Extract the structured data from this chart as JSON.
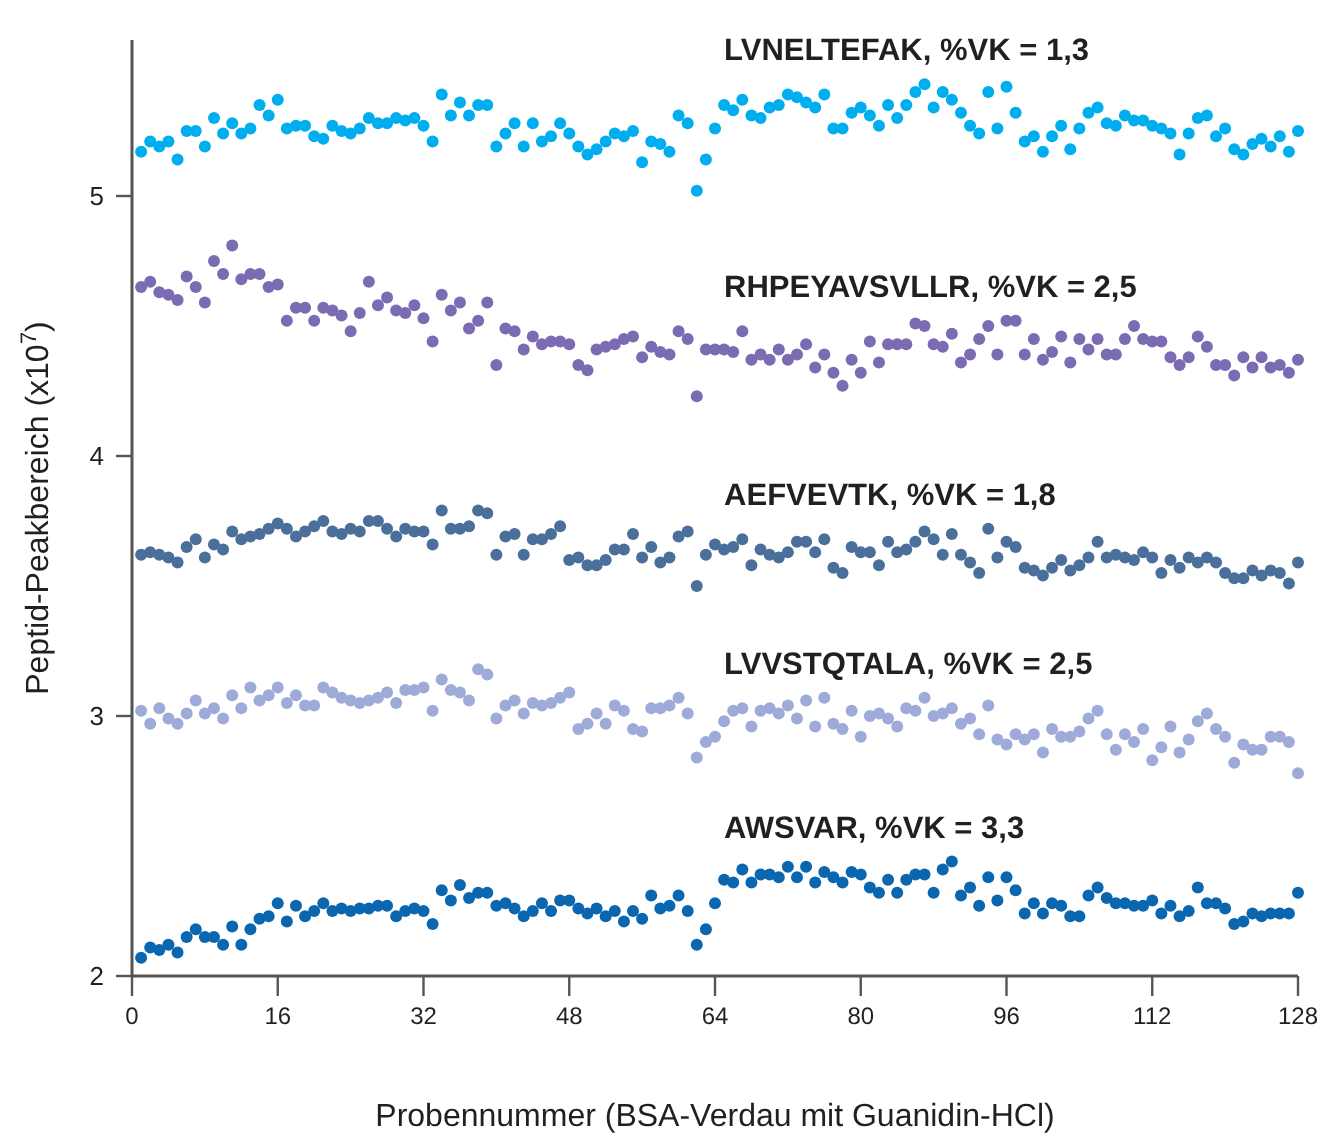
{
  "chart_data": {
    "type": "scatter",
    "xlabel": "Probennummer (BSA-Verdau mit Guanidin-HCl)",
    "ylabel": "Peptid-Peakbereich (x10$^{7}$)",
    "xlim": [
      0,
      128
    ],
    "xticks": [
      0,
      16,
      32,
      48,
      64,
      80,
      96,
      112,
      128
    ],
    "ylim": [
      2,
      5.6
    ],
    "yticks": [
      2,
      3,
      4,
      5
    ],
    "grid": false,
    "marker": "circle",
    "x": [
      1,
      2,
      3,
      4,
      5,
      6,
      7,
      8,
      9,
      10,
      11,
      12,
      13,
      14,
      15,
      16,
      17,
      18,
      19,
      20,
      21,
      22,
      23,
      24,
      25,
      26,
      27,
      28,
      29,
      30,
      31,
      32,
      33,
      34,
      35,
      36,
      37,
      38,
      39,
      40,
      41,
      42,
      43,
      44,
      45,
      46,
      47,
      48,
      49,
      50,
      51,
      52,
      53,
      54,
      55,
      56,
      57,
      58,
      59,
      60,
      61,
      62,
      63,
      64,
      65,
      66,
      67,
      68,
      69,
      70,
      71,
      72,
      73,
      74,
      75,
      76,
      77,
      78,
      79,
      80,
      81,
      82,
      83,
      84,
      85,
      86,
      87,
      88,
      89,
      90,
      91,
      92,
      93,
      94,
      95,
      96,
      97,
      98,
      99,
      100,
      101,
      102,
      103,
      104,
      105,
      106,
      107,
      108,
      109,
      110,
      111,
      112,
      113,
      114,
      115,
      116,
      117,
      118,
      119,
      120,
      121,
      122,
      123,
      124,
      125,
      126,
      127,
      128
    ],
    "series": [
      {
        "name": "LVNELTEFAK, %VK = 1,3",
        "color": "#00aeef",
        "values": [
          5.17,
          5.21,
          5.19,
          5.21,
          5.14,
          5.25,
          5.25,
          5.19,
          5.3,
          5.24,
          5.28,
          5.24,
          5.26,
          5.35,
          5.31,
          5.37,
          5.26,
          5.27,
          5.27,
          5.23,
          5.22,
          5.27,
          5.25,
          5.24,
          5.26,
          5.3,
          5.28,
          5.28,
          5.3,
          5.29,
          5.3,
          5.27,
          5.21,
          5.39,
          5.31,
          5.36,
          5.31,
          5.35,
          5.35,
          5.19,
          5.24,
          5.28,
          5.19,
          5.28,
          5.21,
          5.23,
          5.28,
          5.24,
          5.19,
          5.16,
          5.18,
          5.21,
          5.24,
          5.23,
          5.25,
          5.13,
          5.21,
          5.2,
          5.17,
          5.31,
          5.28,
          5.02,
          5.14,
          5.26,
          5.35,
          5.33,
          5.37,
          5.31,
          5.3,
          5.34,
          5.35,
          5.39,
          5.38,
          5.36,
          5.34,
          5.39,
          5.26,
          5.26,
          5.32,
          5.34,
          5.31,
          5.27,
          5.35,
          5.3,
          5.35,
          5.4,
          5.43,
          5.34,
          5.4,
          5.37,
          5.32,
          5.27,
          5.24,
          5.4,
          5.26,
          5.42,
          5.32,
          5.21,
          5.23,
          5.17,
          5.23,
          5.27,
          5.18,
          5.26,
          5.32,
          5.34,
          5.28,
          5.27,
          5.31,
          5.29,
          5.29,
          5.27,
          5.26,
          5.24,
          5.16,
          5.24,
          5.3,
          5.31,
          5.23,
          5.26,
          5.18,
          5.16,
          5.2,
          5.22,
          5.19,
          5.23,
          5.17,
          5.25
        ]
      },
      {
        "name": "RHPEYAVSVLLR, %VK = 2,5",
        "color": "#7b6bb3",
        "values": [
          4.65,
          4.67,
          4.63,
          4.62,
          4.6,
          4.69,
          4.65,
          4.59,
          4.75,
          4.7,
          4.81,
          4.68,
          4.7,
          4.7,
          4.65,
          4.66,
          4.52,
          4.57,
          4.57,
          4.52,
          4.57,
          4.56,
          4.54,
          4.48,
          4.55,
          4.67,
          4.58,
          4.61,
          4.56,
          4.55,
          4.58,
          4.53,
          4.44,
          4.62,
          4.56,
          4.59,
          4.49,
          4.52,
          4.59,
          4.35,
          4.49,
          4.48,
          4.41,
          4.46,
          4.43,
          4.44,
          4.44,
          4.43,
          4.35,
          4.33,
          4.41,
          4.42,
          4.43,
          4.45,
          4.46,
          4.38,
          4.42,
          4.4,
          4.39,
          4.48,
          4.45,
          4.23,
          4.41,
          4.41,
          4.41,
          4.4,
          4.48,
          4.37,
          4.39,
          4.37,
          4.41,
          4.37,
          4.39,
          4.43,
          4.34,
          4.39,
          4.32,
          4.27,
          4.37,
          4.32,
          4.44,
          4.36,
          4.43,
          4.43,
          4.43,
          4.51,
          4.5,
          4.43,
          4.42,
          4.47,
          4.36,
          4.39,
          4.45,
          4.5,
          4.39,
          4.52,
          4.52,
          4.39,
          4.45,
          4.37,
          4.4,
          4.46,
          4.36,
          4.45,
          4.41,
          4.45,
          4.39,
          4.39,
          4.45,
          4.5,
          4.45,
          4.44,
          4.44,
          4.38,
          4.35,
          4.38,
          4.46,
          4.42,
          4.35,
          4.35,
          4.31,
          4.38,
          4.34,
          4.38,
          4.34,
          4.35,
          4.32,
          4.37
        ]
      },
      {
        "name": "AEFVEVTK, %VK = 1,8",
        "color": "#4a6f9b",
        "values": [
          3.62,
          3.63,
          3.62,
          3.61,
          3.59,
          3.65,
          3.68,
          3.61,
          3.66,
          3.64,
          3.71,
          3.68,
          3.69,
          3.7,
          3.72,
          3.74,
          3.72,
          3.69,
          3.71,
          3.73,
          3.75,
          3.71,
          3.7,
          3.72,
          3.71,
          3.75,
          3.75,
          3.72,
          3.69,
          3.72,
          3.71,
          3.71,
          3.66,
          3.79,
          3.72,
          3.72,
          3.73,
          3.79,
          3.78,
          3.62,
          3.69,
          3.7,
          3.62,
          3.68,
          3.68,
          3.7,
          3.73,
          3.6,
          3.61,
          3.58,
          3.58,
          3.6,
          3.64,
          3.64,
          3.7,
          3.61,
          3.65,
          3.59,
          3.61,
          3.69,
          3.71,
          3.5,
          3.62,
          3.66,
          3.64,
          3.65,
          3.68,
          3.58,
          3.64,
          3.62,
          3.61,
          3.63,
          3.67,
          3.67,
          3.63,
          3.68,
          3.57,
          3.55,
          3.65,
          3.63,
          3.63,
          3.58,
          3.67,
          3.63,
          3.64,
          3.67,
          3.71,
          3.68,
          3.62,
          3.7,
          3.62,
          3.59,
          3.55,
          3.72,
          3.61,
          3.67,
          3.65,
          3.57,
          3.56,
          3.54,
          3.57,
          3.6,
          3.56,
          3.58,
          3.61,
          3.67,
          3.61,
          3.62,
          3.61,
          3.6,
          3.63,
          3.61,
          3.55,
          3.6,
          3.57,
          3.61,
          3.59,
          3.61,
          3.59,
          3.55,
          3.53,
          3.53,
          3.56,
          3.54,
          3.56,
          3.55,
          3.51,
          3.59
        ]
      },
      {
        "name": "LVVSTQTALA, %VK = 2,5",
        "color": "#9eabd9",
        "values": [
          3.02,
          2.97,
          3.03,
          2.99,
          2.97,
          3.01,
          3.06,
          3.01,
          3.03,
          2.99,
          3.08,
          3.03,
          3.11,
          3.06,
          3.08,
          3.11,
          3.05,
          3.08,
          3.04,
          3.04,
          3.11,
          3.09,
          3.07,
          3.06,
          3.05,
          3.06,
          3.07,
          3.09,
          3.05,
          3.1,
          3.1,
          3.11,
          3.02,
          3.14,
          3.1,
          3.09,
          3.06,
          3.18,
          3.16,
          2.99,
          3.04,
          3.06,
          3.01,
          3.05,
          3.04,
          3.05,
          3.07,
          3.09,
          2.95,
          2.97,
          3.01,
          2.97,
          3.04,
          3.02,
          2.95,
          2.94,
          3.03,
          3.03,
          3.04,
          3.07,
          3.01,
          2.84,
          2.9,
          2.92,
          2.98,
          3.02,
          3.03,
          2.96,
          3.02,
          3.03,
          3.01,
          3.04,
          2.99,
          3.06,
          2.96,
          3.07,
          2.97,
          2.95,
          3.02,
          2.92,
          3.0,
          3.01,
          2.99,
          2.96,
          3.03,
          3.02,
          3.07,
          3.0,
          3.01,
          3.03,
          2.97,
          2.99,
          2.93,
          3.04,
          2.91,
          2.89,
          2.93,
          2.91,
          2.93,
          2.86,
          2.95,
          2.92,
          2.92,
          2.94,
          2.99,
          3.02,
          2.93,
          2.87,
          2.93,
          2.9,
          2.95,
          2.83,
          2.88,
          2.96,
          2.86,
          2.91,
          2.98,
          3.01,
          2.95,
          2.92,
          2.82,
          2.89,
          2.87,
          2.87,
          2.92,
          2.92,
          2.9,
          2.78
        ]
      },
      {
        "name": "AWSVAR, %VK = 3,3",
        "color": "#0b66b0",
        "values": [
          2.07,
          2.11,
          2.1,
          2.12,
          2.09,
          2.15,
          2.18,
          2.15,
          2.15,
          2.12,
          2.19,
          2.12,
          2.18,
          2.22,
          2.23,
          2.28,
          2.21,
          2.27,
          2.23,
          2.25,
          2.28,
          2.25,
          2.26,
          2.25,
          2.26,
          2.26,
          2.27,
          2.27,
          2.23,
          2.25,
          2.26,
          2.25,
          2.2,
          2.33,
          2.29,
          2.35,
          2.3,
          2.32,
          2.32,
          2.27,
          2.28,
          2.26,
          2.23,
          2.25,
          2.28,
          2.25,
          2.29,
          2.29,
          2.26,
          2.24,
          2.26,
          2.23,
          2.25,
          2.21,
          2.25,
          2.22,
          2.31,
          2.26,
          2.27,
          2.31,
          2.25,
          2.12,
          2.18,
          2.28,
          2.37,
          2.36,
          2.41,
          2.36,
          2.39,
          2.39,
          2.38,
          2.42,
          2.38,
          2.42,
          2.36,
          2.4,
          2.38,
          2.36,
          2.4,
          2.39,
          2.34,
          2.32,
          2.37,
          2.32,
          2.37,
          2.39,
          2.39,
          2.32,
          2.41,
          2.44,
          2.31,
          2.34,
          2.27,
          2.38,
          2.29,
          2.38,
          2.33,
          2.24,
          2.28,
          2.24,
          2.28,
          2.27,
          2.23,
          2.23,
          2.31,
          2.34,
          2.3,
          2.28,
          2.28,
          2.27,
          2.27,
          2.29,
          2.24,
          2.27,
          2.23,
          2.25,
          2.34,
          2.28,
          2.28,
          2.26,
          2.2,
          2.21,
          2.24,
          2.23,
          2.24,
          2.24,
          2.24,
          2.32
        ]
      }
    ]
  }
}
